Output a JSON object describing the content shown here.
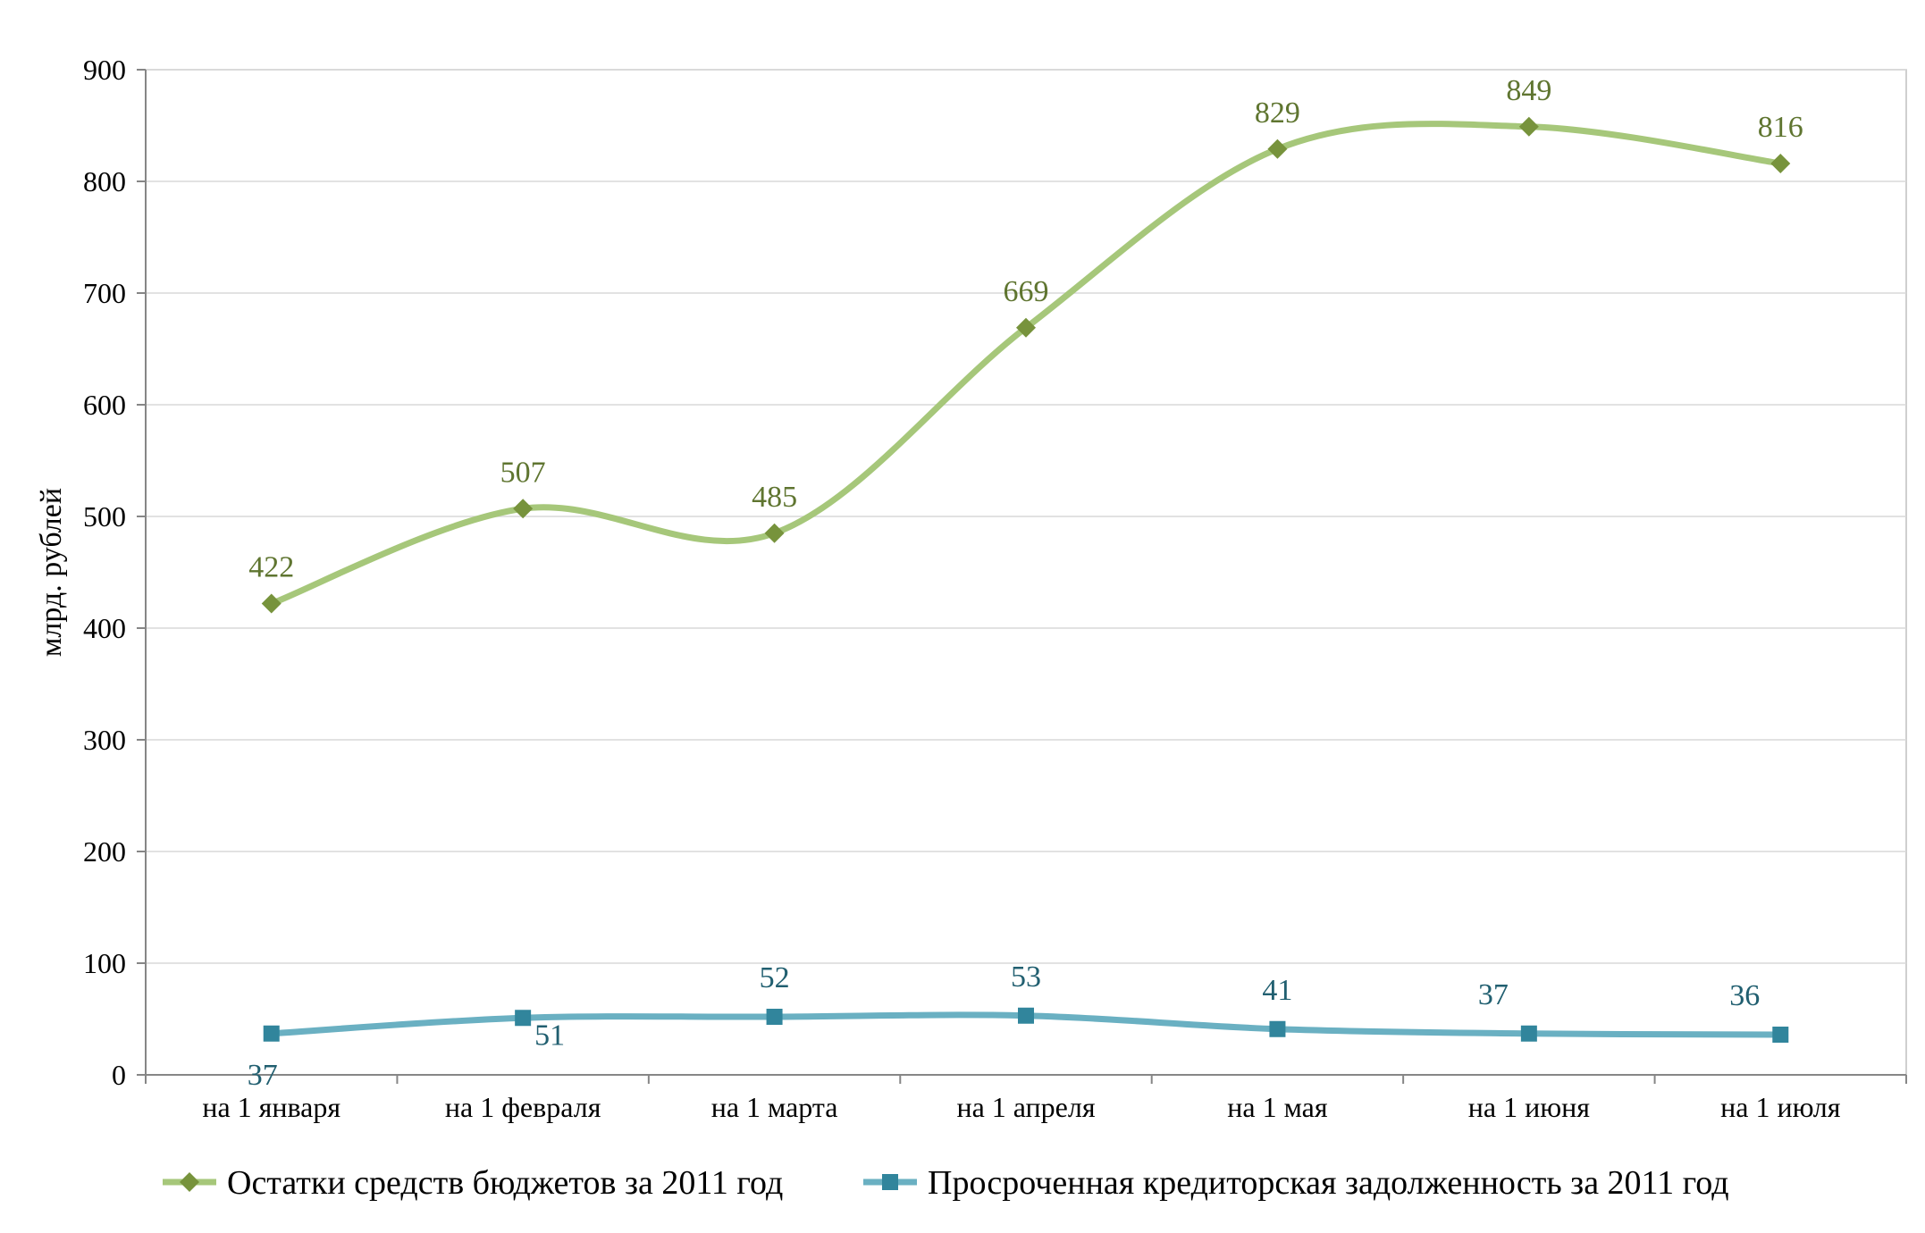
{
  "chart_data": {
    "type": "line",
    "title": "",
    "xlabel": "",
    "ylabel": "млрд. рублей",
    "ylim": [
      0,
      900
    ],
    "yticks": [
      "0",
      "100",
      "200",
      "300",
      "400",
      "500",
      "600",
      "700",
      "800",
      "900"
    ],
    "categories": [
      "на 1 января",
      "на 1 февраля",
      "на 1 марта",
      "на 1 апреля",
      "на 1 мая",
      "на 1 июня",
      "на 1 июля"
    ],
    "grid": true,
    "legend_position": "bottom",
    "series": [
      {
        "name": "Остатки средств бюджетов за 2011 год",
        "values": [
          422,
          507,
          485,
          669,
          829,
          849,
          816
        ],
        "labels": [
          "422",
          "507",
          "485",
          "669",
          "829",
          "849",
          "816"
        ],
        "line_color": "#a6c77a",
        "marker_color": "#77933c",
        "label_color": "#5f7530",
        "marker": "diamond"
      },
      {
        "name": "Просроченная кредиторская задолженность за 2011 год",
        "values": [
          37,
          51,
          52,
          53,
          41,
          37,
          36
        ],
        "labels": [
          "37",
          "51",
          "52",
          "53",
          "41",
          "37",
          "36"
        ],
        "line_color": "#6ab0c2",
        "marker_color": "#31859c",
        "label_color": "#215f70",
        "marker": "square"
      }
    ]
  }
}
